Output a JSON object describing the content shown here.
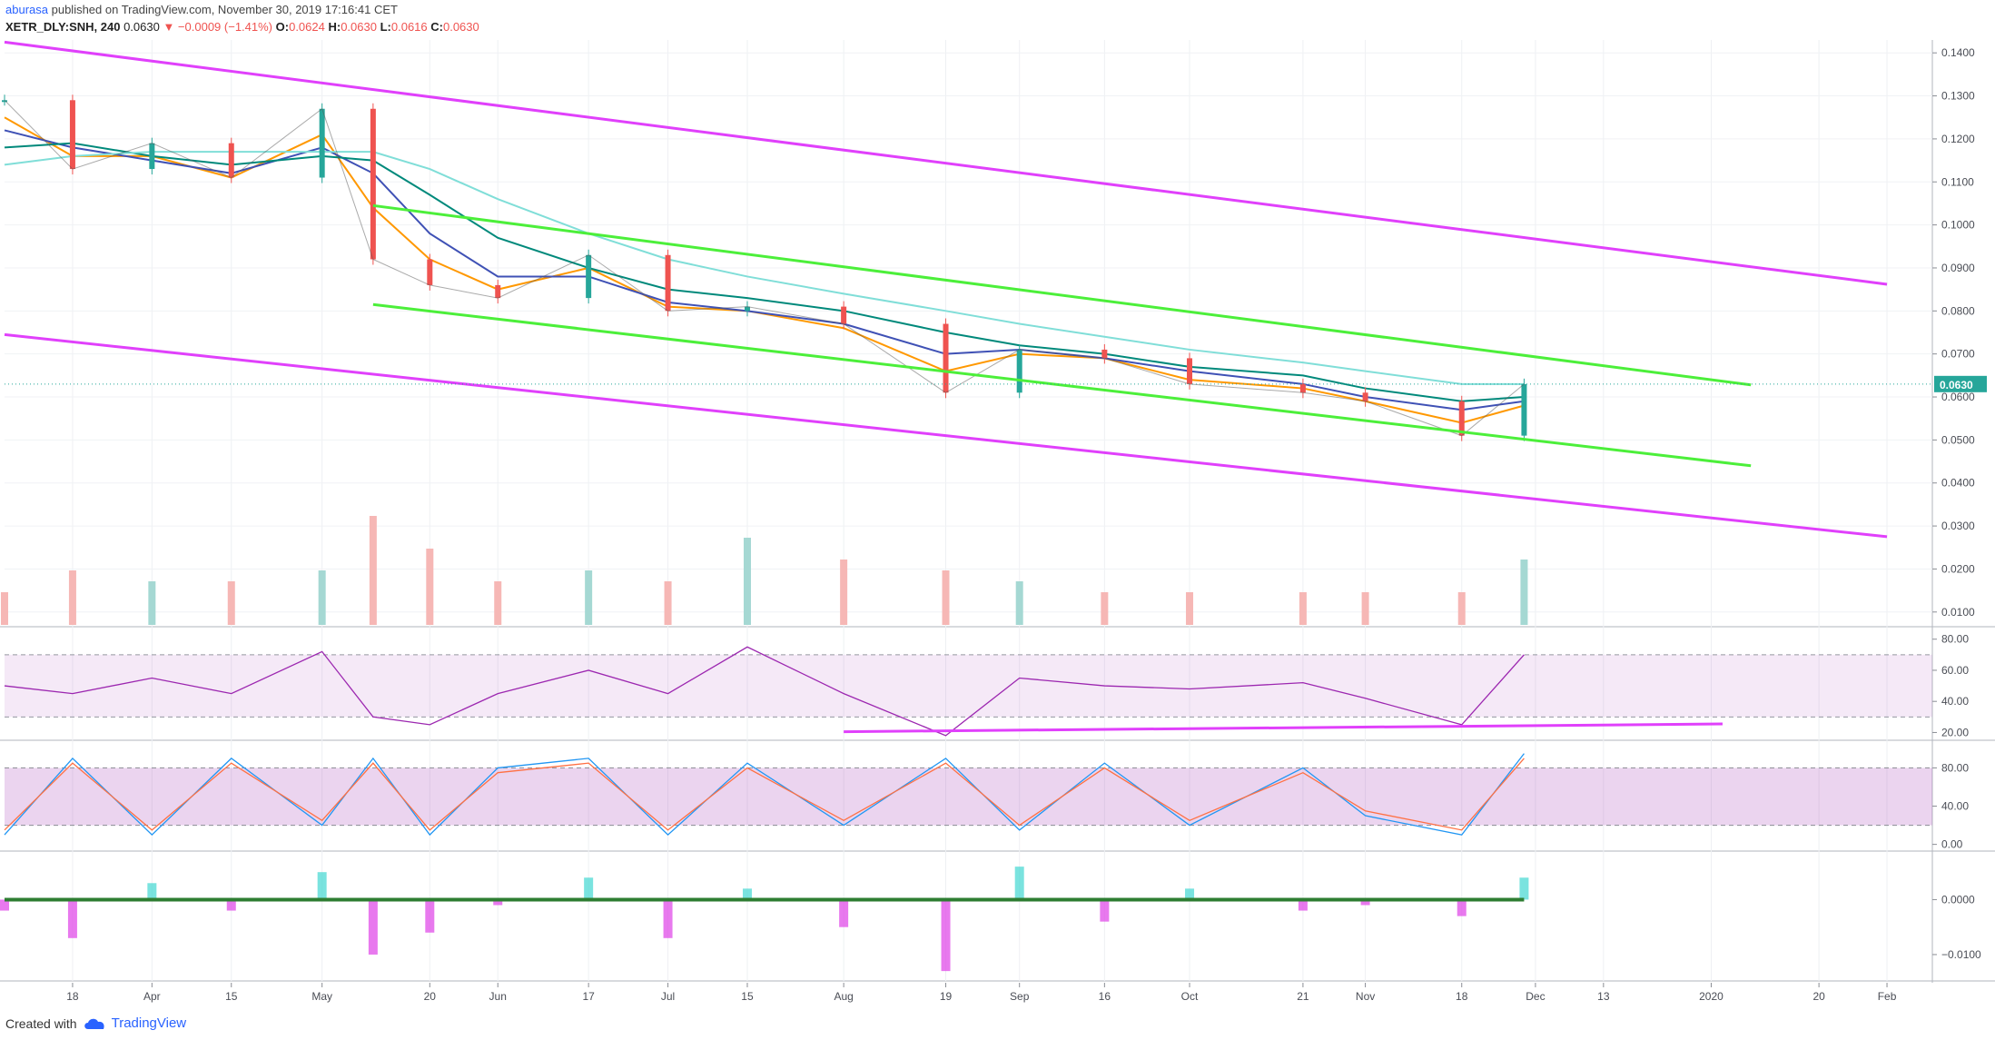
{
  "header": {
    "user": "aburasa",
    "published_text": "published on TradingView.com, November 30, 2019 17:16:41 CET",
    "symbol_interval": "XETR_DLY:SNH, 240",
    "last_price": "0.0630",
    "change": "▼ −0.0009 (−1.41%)",
    "o_label": "O:",
    "o_value": "0.0624",
    "h_label": "H:",
    "h_value": "0.0630",
    "l_label": "L:",
    "l_value": "0.0616",
    "c_label": "C:",
    "c_value": "0.0630"
  },
  "footer": {
    "created_with": "Created with",
    "brand": "TradingView"
  },
  "colors": {
    "magenta_channel": "#e040fb",
    "green_channel": "#4cef3a",
    "price_badge": "#26a69a",
    "up_candle": "#26a69a",
    "down_candle": "#ef5350",
    "ma_fast": "#ff9800",
    "ma_mid": "#3f51b5",
    "ma_slow": "#00897b",
    "ma_long": "#80ded8",
    "rsi_line": "#9c27b0",
    "stoch_k": "#2196f3",
    "stoch_d": "#ff7043"
  },
  "chart_data": [
    {
      "type": "line",
      "title": "XETR_DLY:SNH, 240",
      "current_price": 0.063,
      "ylim": [
        0.007,
        0.143
      ],
      "y_ticks": [
        "0.1400",
        "0.1300",
        "0.1200",
        "0.1100",
        "0.1000",
        "0.0900",
        "0.0800",
        "0.0700",
        "0.0600",
        "0.0500",
        "0.0400",
        "0.0300",
        "0.0200",
        "0.0100"
      ],
      "x_ticks": [
        "18",
        "Apr",
        "15",
        "May",
        "20",
        "Jun",
        "17",
        "Jul",
        "15",
        "Aug",
        "19",
        "Sep",
        "16",
        "Oct",
        "21",
        "Nov",
        "18",
        "Dec",
        "13",
        "2020",
        "20",
        "Feb"
      ],
      "x": [
        "Mar 6",
        "Mar 18",
        "Apr 1",
        "Apr 15",
        "May 1",
        "May 10",
        "May 20",
        "Jun 1",
        "Jun 17",
        "Jul 1",
        "Jul 15",
        "Aug 1",
        "Aug 19",
        "Sep 1",
        "Sep 16",
        "Oct 1",
        "Oct 21",
        "Nov 1",
        "Nov 18",
        "Nov 29"
      ],
      "series": [
        {
          "values": [
            0.129,
            0.113,
            0.119,
            0.111,
            0.127,
            0.092,
            0.086,
            0.083,
            0.093,
            0.08,
            0.081,
            0.077,
            0.061,
            0.071,
            0.069,
            0.063,
            0.061,
            0.059,
            0.051,
            0.063
          ]
        },
        {
          "values": [
            0.125,
            0.116,
            0.116,
            0.111,
            0.121,
            0.104,
            0.092,
            0.085,
            0.09,
            0.081,
            0.08,
            0.076,
            0.066,
            0.07,
            0.069,
            0.064,
            0.062,
            0.059,
            0.054,
            0.058
          ]
        },
        {
          "values": [
            0.122,
            0.118,
            0.115,
            0.112,
            0.118,
            0.112,
            0.098,
            0.088,
            0.088,
            0.082,
            0.08,
            0.077,
            0.07,
            0.071,
            0.069,
            0.066,
            0.063,
            0.06,
            0.057,
            0.059
          ]
        },
        {
          "values": [
            0.118,
            0.119,
            0.116,
            0.114,
            0.116,
            0.115,
            0.107,
            0.097,
            0.09,
            0.085,
            0.083,
            0.08,
            0.075,
            0.072,
            0.07,
            0.067,
            0.065,
            0.062,
            0.059,
            0.06
          ]
        },
        {
          "values": [
            0.114,
            0.116,
            0.117,
            0.117,
            0.117,
            0.117,
            0.113,
            0.106,
            0.098,
            0.092,
            0.088,
            0.084,
            0.08,
            0.077,
            0.074,
            0.071,
            0.068,
            0.066,
            0.063,
            0.063
          ]
        }
      ],
      "volume": [
        0.3,
        0.5,
        0.4,
        0.4,
        0.5,
        1.0,
        0.7,
        0.4,
        0.5,
        0.4,
        0.8,
        0.6,
        0.5,
        0.4,
        0.3,
        0.3,
        0.3,
        0.3,
        0.3,
        0.6
      ],
      "trendlines": [
        {
          "from": [
            "Mar 6",
            0.1425
          ],
          "to": [
            "Feb",
            0.0862
          ]
        },
        {
          "from": [
            "Mar 6",
            0.0745
          ],
          "to": [
            "Feb",
            0.0275
          ]
        },
        {
          "from": [
            "May 10",
            0.1045
          ],
          "to": [
            "Jan 8",
            0.0628
          ]
        },
        {
          "from": [
            "May 10",
            0.0815
          ],
          "to": [
            "Jan 8",
            0.044
          ]
        }
      ]
    },
    {
      "type": "line",
      "title": "",
      "ylim": [
        15,
        88
      ],
      "y_ticks": [
        "80.00",
        "60.00",
        "40.00",
        "20.00"
      ],
      "bands": [
        30,
        70
      ],
      "series": [
        {
          "values": [
            50,
            45,
            55,
            45,
            72,
            30,
            25,
            45,
            60,
            45,
            75,
            45,
            18,
            55,
            50,
            48,
            52,
            42,
            25,
            70
          ]
        }
      ],
      "support_line": {
        "from": [
          "Aug 1",
          20.5
        ],
        "to": [
          "Jan 3",
          25.5
        ]
      }
    },
    {
      "type": "line",
      "title": "",
      "ylim": [
        -7,
        107
      ],
      "y_ticks": [
        "80.00",
        "40.00",
        "0.00"
      ],
      "bands": [
        20,
        80
      ],
      "series": [
        {
          "values": [
            10,
            90,
            10,
            90,
            20,
            90,
            10,
            80,
            90,
            10,
            85,
            20,
            90,
            15,
            85,
            20,
            80,
            30,
            10,
            95
          ]
        },
        {
          "values": [
            15,
            85,
            15,
            85,
            25,
            85,
            15,
            75,
            85,
            15,
            80,
            25,
            85,
            20,
            80,
            25,
            75,
            35,
            15,
            90
          ]
        }
      ]
    },
    {
      "type": "bar",
      "title": "",
      "ylim": [
        -0.0148,
        0.0085
      ],
      "y_ticks": [
        "0.0000",
        "−0.0100"
      ],
      "values": [
        -0.002,
        -0.007,
        0.003,
        -0.002,
        0.005,
        -0.01,
        -0.006,
        -0.001,
        0.004,
        -0.007,
        0.002,
        -0.005,
        -0.013,
        0.006,
        -0.004,
        0.002,
        -0.002,
        -0.001,
        -0.003,
        0.004
      ]
    }
  ]
}
